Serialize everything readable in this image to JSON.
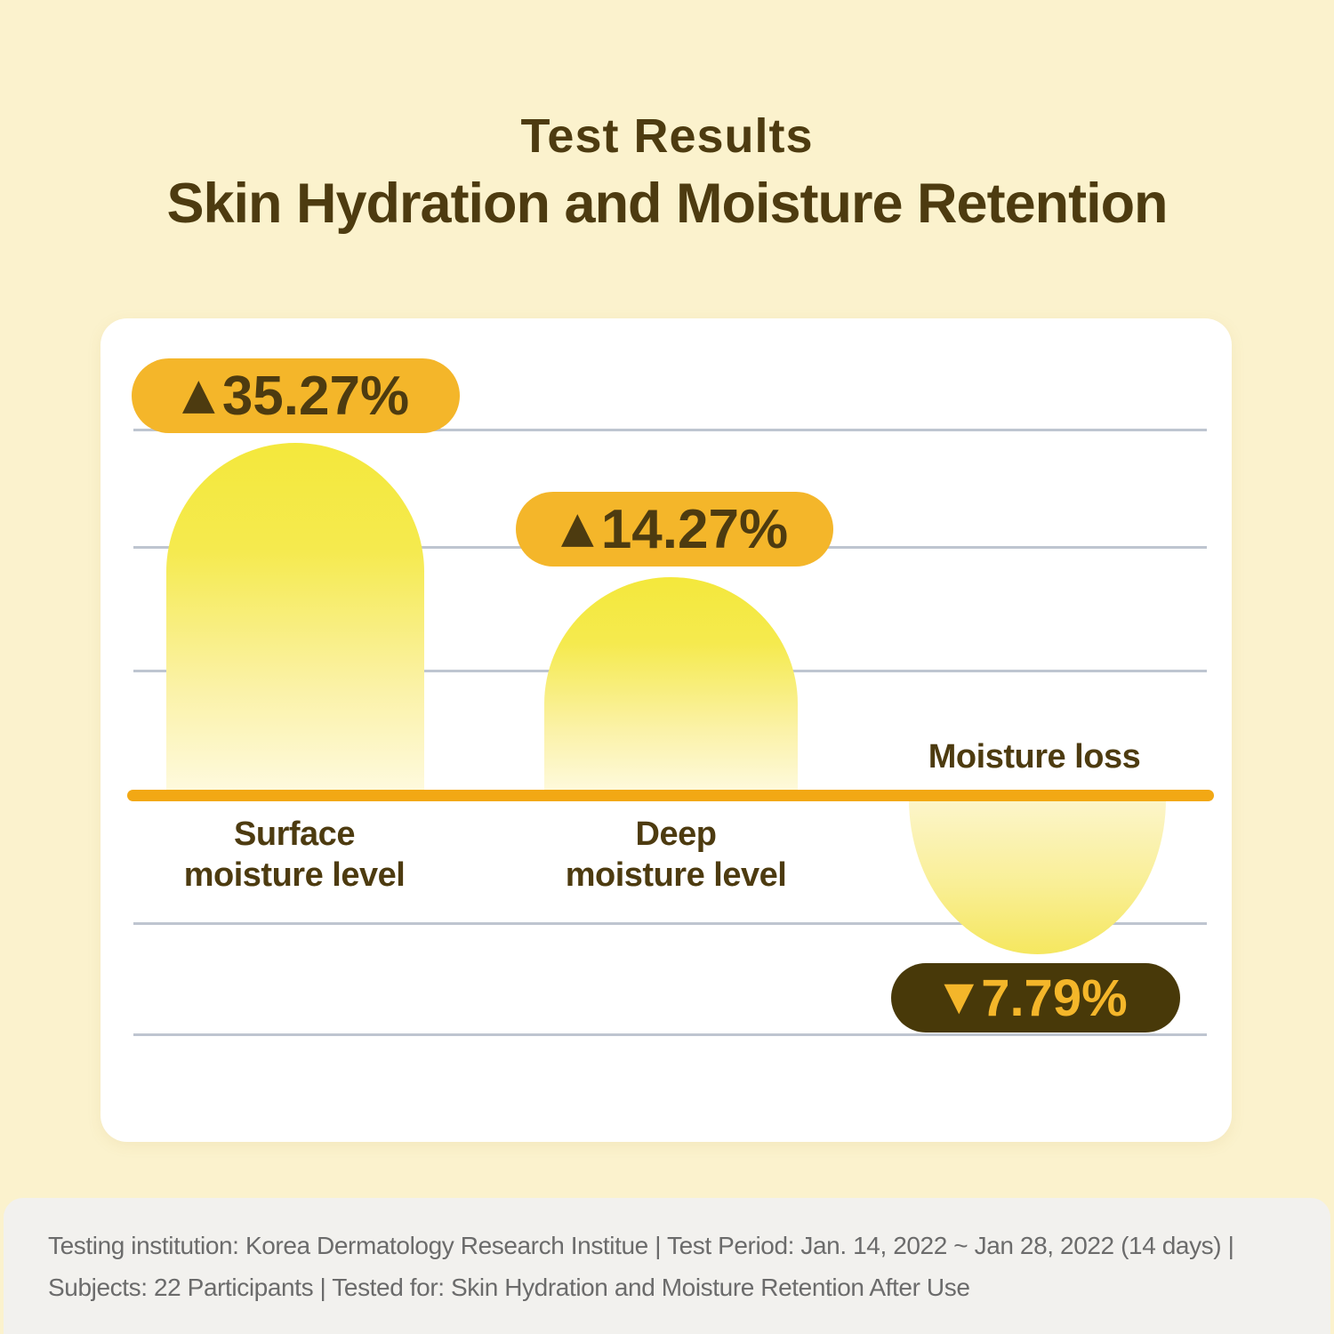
{
  "header": {
    "eyebrow": "Test Results",
    "title": "Skin Hydration and Moisture Retention"
  },
  "chart": {
    "up_arrow": "▲",
    "down_arrow": "▼",
    "bars": [
      {
        "value": "35.27%",
        "direction": "up",
        "label_line1": "Surface",
        "label_line2": "moisture level"
      },
      {
        "value": "14.27%",
        "direction": "up",
        "label_line1": "Deep",
        "label_line2": "moisture level"
      },
      {
        "value": "7.79%",
        "direction": "down",
        "label": "Moisture loss"
      }
    ]
  },
  "chart_data": {
    "type": "bar",
    "title": "Test Results",
    "subtitle": "Skin Hydration and Moisture Retention",
    "categories": [
      "Surface moisture level",
      "Deep moisture level",
      "Moisture loss"
    ],
    "values": [
      35.27,
      14.27,
      -7.79
    ],
    "value_labels": [
      "▲35.27%",
      "▲14.27%",
      "▼7.79%"
    ],
    "units": "%",
    "baseline": 0,
    "grid": "horizontal",
    "legend_position": "none",
    "bar_style": "rounded gradient yellow, down bar below zero baseline"
  },
  "footer": {
    "line1": "Testing institution: Korea Dermatology Research Institue | Test Period: Jan. 14, 2022 ~ Jan 28, 2022  (14 days) |",
    "line2": "Subjects: 22 Participants | Tested for: Skin Hydration and Moisture Retention After Use"
  },
  "colors": {
    "background": "#FBF2CD",
    "card": "#FFFFFF",
    "brown": "#4D3B10",
    "badge_yellow": "#F4B62A",
    "badge_brown": "#483909",
    "baseline_orange": "#F2A814",
    "bar_yellow": "#F4E83C",
    "gridline": "#BEC5D0",
    "footer_bg": "#F2F1EE",
    "footer_text": "#6B6B6B"
  }
}
